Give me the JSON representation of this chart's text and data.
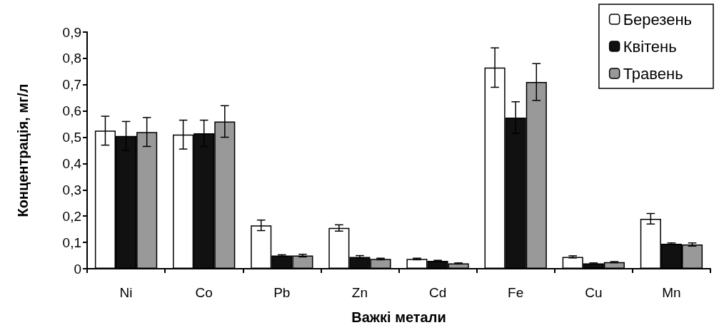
{
  "chart_data": {
    "type": "bar",
    "xlabel": "Важкі метали",
    "ylabel": "Концентрація, мг/л",
    "categories": [
      "Ni",
      "Co",
      "Pb",
      "Zn",
      "Cd",
      "Fe",
      "Cu",
      "Mn"
    ],
    "series": [
      {
        "name": "Березень",
        "color": "#ffffff",
        "values": [
          0.525,
          0.51,
          0.165,
          0.155,
          0.037,
          0.765,
          0.045,
          0.19
        ],
        "errors": [
          0.055,
          0.055,
          0.02,
          0.012,
          0.003,
          0.075,
          0.004,
          0.02
        ]
      },
      {
        "name": "Квітень",
        "color": "#111111",
        "values": [
          0.505,
          0.515,
          0.05,
          0.045,
          0.03,
          0.575,
          0.02,
          0.095
        ],
        "errors": [
          0.055,
          0.05,
          0.003,
          0.005,
          0.002,
          0.06,
          0.002,
          0.003
        ]
      },
      {
        "name": "Травень",
        "color": "#999999",
        "values": [
          0.52,
          0.56,
          0.05,
          0.037,
          0.02,
          0.71,
          0.025,
          0.092
        ],
        "errors": [
          0.055,
          0.06,
          0.005,
          0.003,
          0.002,
          0.07,
          0.002,
          0.006
        ]
      }
    ],
    "ylim": [
      0,
      0.9
    ],
    "yticks": [
      0,
      {
        "value": 0.1,
        "label": "0,1"
      },
      {
        "value": 0.2,
        "label": "0,2"
      },
      {
        "value": 0.3,
        "label": "0,3"
      },
      {
        "value": 0.4,
        "label": "0,4"
      },
      {
        "value": 0.5,
        "label": "0,5"
      },
      {
        "value": 0.6,
        "label": "0,6"
      },
      {
        "value": 0.7,
        "label": "0,7"
      },
      {
        "value": 0.8,
        "label": "0,8"
      },
      {
        "value": 0.9,
        "label": "0,9"
      }
    ],
    "grid": false,
    "legend": "top right"
  }
}
